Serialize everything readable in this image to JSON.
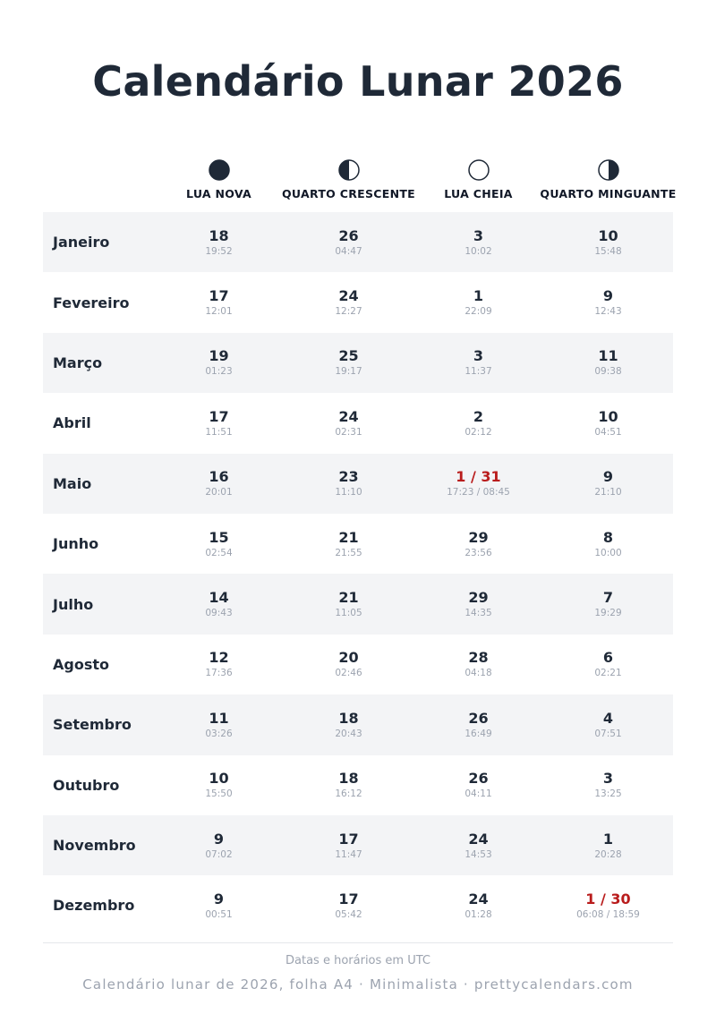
{
  "title": "Calendário Lunar 2026",
  "phases": [
    {
      "label": "LUA NOVA",
      "icon": "new-moon-icon"
    },
    {
      "label": "QUARTO CRESCENTE",
      "icon": "first-quarter-moon-icon"
    },
    {
      "label": "LUA CHEIA",
      "icon": "full-moon-icon"
    },
    {
      "label": "QUARTO MINGUANTE",
      "icon": "last-quarter-moon-icon"
    }
  ],
  "colors": {
    "text": "#1f2937",
    "highlight": "#b91c1c",
    "muted": "#9ca3af",
    "stripe": "#f3f4f6"
  },
  "months": [
    {
      "name": "Janeiro",
      "cells": [
        {
          "day": "18",
          "time": "19:52"
        },
        {
          "day": "26",
          "time": "04:47"
        },
        {
          "day": "3",
          "time": "10:02"
        },
        {
          "day": "10",
          "time": "15:48"
        }
      ]
    },
    {
      "name": "Fevereiro",
      "cells": [
        {
          "day": "17",
          "time": "12:01"
        },
        {
          "day": "24",
          "time": "12:27"
        },
        {
          "day": "1",
          "time": "22:09"
        },
        {
          "day": "9",
          "time": "12:43"
        }
      ]
    },
    {
      "name": "Março",
      "cells": [
        {
          "day": "19",
          "time": "01:23"
        },
        {
          "day": "25",
          "time": "19:17"
        },
        {
          "day": "3",
          "time": "11:37"
        },
        {
          "day": "11",
          "time": "09:38"
        }
      ]
    },
    {
      "name": "Abril",
      "cells": [
        {
          "day": "17",
          "time": "11:51"
        },
        {
          "day": "24",
          "time": "02:31"
        },
        {
          "day": "2",
          "time": "02:12"
        },
        {
          "day": "10",
          "time": "04:51"
        }
      ]
    },
    {
      "name": "Maio",
      "cells": [
        {
          "day": "16",
          "time": "20:01"
        },
        {
          "day": "23",
          "time": "11:10"
        },
        {
          "day": "1 / 31",
          "time": "17:23 / 08:45",
          "highlight": true
        },
        {
          "day": "9",
          "time": "21:10"
        }
      ]
    },
    {
      "name": "Junho",
      "cells": [
        {
          "day": "15",
          "time": "02:54"
        },
        {
          "day": "21",
          "time": "21:55"
        },
        {
          "day": "29",
          "time": "23:56"
        },
        {
          "day": "8",
          "time": "10:00"
        }
      ]
    },
    {
      "name": "Julho",
      "cells": [
        {
          "day": "14",
          "time": "09:43"
        },
        {
          "day": "21",
          "time": "11:05"
        },
        {
          "day": "29",
          "time": "14:35"
        },
        {
          "day": "7",
          "time": "19:29"
        }
      ]
    },
    {
      "name": "Agosto",
      "cells": [
        {
          "day": "12",
          "time": "17:36"
        },
        {
          "day": "20",
          "time": "02:46"
        },
        {
          "day": "28",
          "time": "04:18"
        },
        {
          "day": "6",
          "time": "02:21"
        }
      ]
    },
    {
      "name": "Setembro",
      "cells": [
        {
          "day": "11",
          "time": "03:26"
        },
        {
          "day": "18",
          "time": "20:43"
        },
        {
          "day": "26",
          "time": "16:49"
        },
        {
          "day": "4",
          "time": "07:51"
        }
      ]
    },
    {
      "name": "Outubro",
      "cells": [
        {
          "day": "10",
          "time": "15:50"
        },
        {
          "day": "18",
          "time": "16:12"
        },
        {
          "day": "26",
          "time": "04:11"
        },
        {
          "day": "3",
          "time": "13:25"
        }
      ]
    },
    {
      "name": "Novembro",
      "cells": [
        {
          "day": "9",
          "time": "07:02"
        },
        {
          "day": "17",
          "time": "11:47"
        },
        {
          "day": "24",
          "time": "14:53"
        },
        {
          "day": "1",
          "time": "20:28"
        }
      ]
    },
    {
      "name": "Dezembro",
      "cells": [
        {
          "day": "9",
          "time": "00:51"
        },
        {
          "day": "17",
          "time": "05:42"
        },
        {
          "day": "24",
          "time": "01:28"
        },
        {
          "day": "1 / 30",
          "time": "06:08 / 18:59",
          "highlight": true
        }
      ]
    }
  ],
  "note": "Datas e horários em UTC",
  "footer": "Calendário lunar de 2026, folha A4 · Minimalista · prettycalendars.com"
}
